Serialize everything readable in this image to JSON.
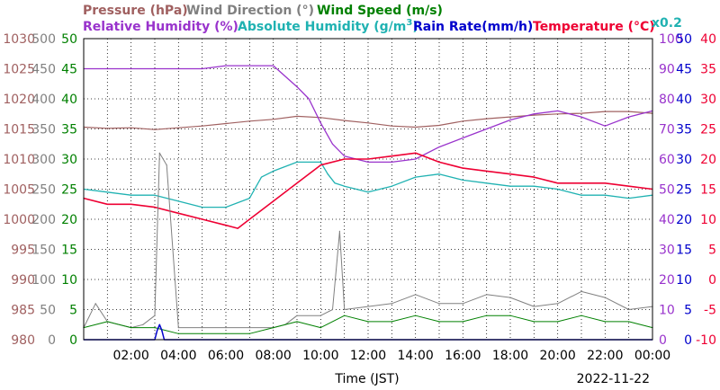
{
  "chart_data": {
    "type": "line",
    "title_row1": {
      "pressure": "Pressure (hPa)",
      "wind_direction": "Wind Direction (°)",
      "wind_speed": "Wind Speed (m/s)"
    },
    "title_row2": {
      "relative_humidity": "Relative Humidity (%)",
      "absolute_humidity": "Absolute Humidity (g/m",
      "absolute_humidity_sup": "3",
      "absolute_humidity_close": ")",
      "rain_rate": "Rain Rate(mm/h)",
      "temperature": "Temperature (°C)",
      "scale_note": "x0.2"
    },
    "xlabel": "Time (JST)",
    "date": "2022-11-22",
    "x_unit": "hour",
    "xlim": [
      0,
      24
    ],
    "x_ticks": [
      "02:00",
      "04:00",
      "06:00",
      "08:00",
      "10:00",
      "12:00",
      "14:00",
      "16:00",
      "18:00",
      "20:00",
      "22:00",
      "00:00"
    ],
    "axes": {
      "pressure": {
        "ticks": [
          "1030",
          "1025",
          "1020",
          "1015",
          "1010",
          "1005",
          "1000",
          "995",
          "990",
          "985",
          "980"
        ],
        "range": [
          980,
          1030
        ],
        "color": "#a06060"
      },
      "wind_direction": {
        "ticks": [
          "500",
          "450",
          "400",
          "350",
          "300",
          "250",
          "200",
          "150",
          "100",
          "50",
          "0"
        ],
        "range": [
          0,
          500
        ],
        "color": "#808080"
      },
      "wind_speed": {
        "ticks": [
          "50",
          "45",
          "40",
          "35",
          "30",
          "25",
          "20",
          "15",
          "10",
          "5",
          "0"
        ],
        "range": [
          0,
          50
        ],
        "color": "#008000"
      },
      "relative_humidity": {
        "ticks": [
          "100",
          "90",
          "80",
          "70",
          "60",
          "50",
          "40",
          "30",
          "20",
          "10",
          "0"
        ],
        "range": [
          0,
          100
        ],
        "color": "#9933cc"
      },
      "rain_rate": {
        "ticks": [
          "50",
          "45",
          "40",
          "35",
          "30",
          "25",
          "20",
          "15",
          "10",
          "5",
          "0"
        ],
        "range": [
          0,
          50
        ],
        "color": "#0000cc"
      },
      "temperature": {
        "ticks": [
          "40",
          "35",
          "30",
          "25",
          "20",
          "15",
          "10",
          "5",
          "0",
          "-5",
          "-10"
        ],
        "range": [
          -10,
          40
        ],
        "color": "#ee0033"
      }
    },
    "colors": {
      "pressure": "#a06060",
      "wind_direction": "#808080",
      "wind_speed": "#008000",
      "relative_humidity": "#9933cc",
      "absolute_humidity": "#20b2b2",
      "rain_rate": "#0000cc",
      "temperature": "#ee0033",
      "grid": "#000000"
    },
    "series": [
      {
        "name": "Pressure (hPa)",
        "axis": "pressure",
        "x": [
          0,
          1,
          2,
          3,
          4,
          5,
          6,
          7,
          8,
          9,
          10,
          11,
          12,
          13,
          14,
          15,
          16,
          17,
          18,
          19,
          20,
          21,
          22,
          23,
          24
        ],
        "y": [
          1015.3,
          1015.1,
          1015.2,
          1014.9,
          1015.2,
          1015.5,
          1015.9,
          1016.3,
          1016.6,
          1017.1,
          1016.9,
          1016.4,
          1016.0,
          1015.5,
          1015.3,
          1015.6,
          1016.3,
          1016.7,
          1017.0,
          1017.3,
          1017.5,
          1017.6,
          1017.9,
          1017.9,
          1017.6
        ]
      },
      {
        "name": "Relative Humidity (%)",
        "axis": "relative_humidity",
        "x": [
          0,
          1,
          2,
          3,
          4,
          5,
          6,
          7,
          8,
          9,
          9.5,
          10,
          10.5,
          11,
          12,
          13,
          14,
          15,
          16,
          17,
          18,
          19,
          20,
          21,
          22,
          23,
          24
        ],
        "y": [
          90,
          90,
          90,
          90,
          90,
          90,
          91,
          91,
          91,
          84,
          80,
          72,
          65,
          61,
          59,
          59,
          60,
          64,
          67,
          70,
          73,
          75,
          76,
          74,
          71,
          74,
          76
        ]
      },
      {
        "name": "Absolute Humidity (x0.2)",
        "axis": "relative_humidity",
        "x": [
          0,
          1,
          2,
          3,
          4,
          5,
          6,
          7,
          7.5,
          8,
          9,
          10,
          10.3,
          10.6,
          11,
          12,
          13,
          14,
          15,
          16,
          17,
          18,
          19,
          20,
          21,
          22,
          23,
          24
        ],
        "y": [
          50,
          49,
          48,
          48,
          46,
          44,
          44,
          47,
          54,
          56,
          59,
          59,
          55,
          52,
          51,
          49,
          51,
          54,
          55,
          53,
          52,
          51,
          51,
          50,
          48,
          48,
          47,
          48
        ]
      },
      {
        "name": "Temperature (°C)",
        "axis": "temperature",
        "x": [
          0,
          1,
          2,
          3,
          4,
          5,
          6,
          6.5,
          7,
          8,
          9,
          10,
          11,
          12,
          13,
          14,
          15,
          16,
          17,
          18,
          19,
          20,
          21,
          22,
          23,
          24
        ],
        "y": [
          13.5,
          12.5,
          12.5,
          12,
          11,
          10,
          9,
          8.5,
          10,
          13,
          16,
          19,
          20,
          20,
          20.5,
          21,
          19.5,
          18.5,
          18,
          17.5,
          17,
          16,
          16,
          16,
          15.5,
          15
        ]
      },
      {
        "name": "Wind Direction (°)",
        "axis": "wind_direction",
        "x": [
          0,
          0.5,
          1,
          2,
          2.5,
          3,
          3.2,
          3.5,
          4,
          5,
          6,
          7,
          8,
          8.5,
          9,
          10,
          10.5,
          10.8,
          11,
          12,
          13,
          14,
          15,
          16,
          17,
          18,
          19,
          20,
          21,
          22,
          23,
          24
        ],
        "y": [
          20,
          60,
          30,
          20,
          25,
          40,
          310,
          290,
          20,
          20,
          20,
          20,
          20,
          25,
          40,
          40,
          50,
          180,
          50,
          55,
          60,
          75,
          60,
          60,
          75,
          70,
          55,
          60,
          80,
          70,
          50,
          55
        ]
      },
      {
        "name": "Wind Speed (m/s)",
        "axis": "wind_speed",
        "x": [
          0,
          1,
          2,
          3,
          4,
          5,
          6,
          7,
          8,
          9,
          10,
          11,
          12,
          13,
          14,
          15,
          16,
          17,
          18,
          19,
          20,
          21,
          22,
          23,
          24
        ],
        "y": [
          2,
          3,
          2,
          2,
          1,
          1,
          1,
          1,
          2,
          3,
          2,
          4,
          3,
          3,
          4,
          3,
          3,
          4,
          4,
          3,
          3,
          4,
          3,
          3,
          2
        ]
      },
      {
        "name": "Rain Rate(mm/h)",
        "axis": "rain_rate",
        "x": [
          0,
          3.0,
          3.1,
          3.2,
          3.3,
          3.4,
          24
        ],
        "y": [
          0,
          0,
          1.5,
          2.5,
          1.5,
          0,
          0
        ]
      }
    ]
  }
}
